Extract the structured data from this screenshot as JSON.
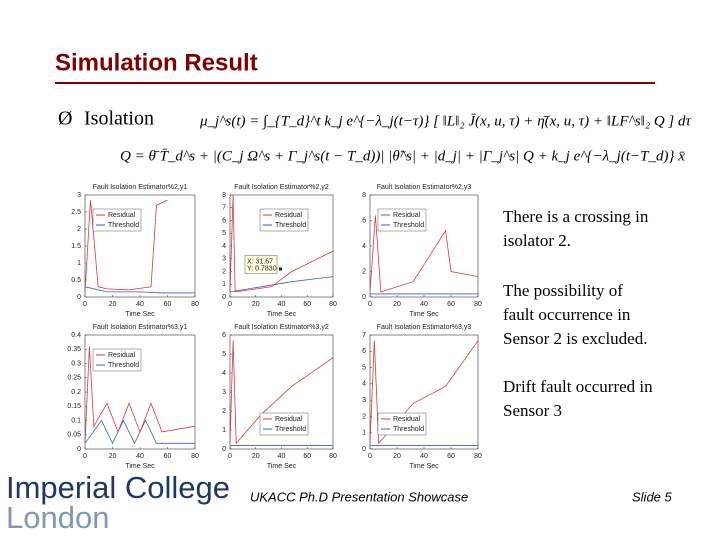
{
  "slide": {
    "title": "Simulation Result",
    "bullet_marker": "Ø",
    "bullet": "Isolation",
    "equations": [
      "μ_j^s(t) = ∫_{T_d}^t k_j e^{−λ_j(t−τ)} [ ‖L‖₂ J̄(x, u, τ) + η̄(x, u, τ) + ‖LF^s‖₂ Q ] dτ",
      "Q = θ̄ T̄_d^s + |(C_j Ω^s + Γ_j^s(t − T_d))| |θ̃^s| + |d_j| + |Γ_j^s| Q + k_j e^{−λ_j(t−T_d)} x̄"
    ],
    "notes": [
      [
        "There is a crossing in",
        "isolator 2."
      ],
      [
        "The possibility of",
        "fault occurrence in",
        "Sensor 2 is excluded."
      ],
      [
        "Drift fault occurred in",
        "Sensor 3"
      ]
    ],
    "plots": [
      {
        "title": "Fault Isolation Estimator%2,y1",
        "xlabel": "Time Sec",
        "xlim": [
          0,
          80
        ],
        "xticks": [
          0,
          20,
          40,
          60,
          80
        ],
        "ylim": [
          0,
          3
        ],
        "yticks": [
          0,
          0.5,
          1,
          1.5,
          2,
          2.5,
          3
        ],
        "legend": [
          "Residual",
          "Threshold"
        ]
      },
      {
        "title": "Fault Isolation Estimator%2,y2",
        "xlabel": "Time Sec",
        "xlim": [
          0,
          80
        ],
        "xticks": [
          0,
          20,
          40,
          60,
          80
        ],
        "ylim": [
          0,
          8
        ],
        "yticks": [
          0,
          1,
          2,
          3,
          4,
          5,
          6,
          7,
          8
        ],
        "legend": [
          "Residual",
          "Threshold"
        ],
        "annotation": [
          "X: 31.67",
          "Y: 0.7830"
        ]
      },
      {
        "title": "Fault Isolation Estimator%2,y3",
        "xlabel": "Time Sec",
        "xlim": [
          0,
          80
        ],
        "xticks": [
          0,
          20,
          40,
          60,
          80
        ],
        "ylim": [
          0,
          8
        ],
        "yticks": [
          0,
          2,
          4,
          6,
          8
        ],
        "legend": [
          "Residual",
          "Threshold"
        ]
      },
      {
        "title": "Fault Isolation Estimator%3,y1",
        "xlabel": "Time Sec",
        "xlim": [
          0,
          80
        ],
        "xticks": [
          0,
          20,
          40,
          60,
          80
        ],
        "ylim": [
          0,
          0.4
        ],
        "yticks": [
          0,
          0.05,
          0.1,
          0.15,
          0.2,
          0.25,
          0.3,
          0.35,
          0.4
        ],
        "legend": [
          "Residual",
          "Threshold"
        ]
      },
      {
        "title": "Fault Isolation Estimator%3,y2",
        "xlabel": "Time Sec",
        "xlim": [
          0,
          80
        ],
        "xticks": [
          0,
          20,
          40,
          60,
          80
        ],
        "ylim": [
          0,
          6
        ],
        "yticks": [
          0,
          1,
          2,
          3,
          4,
          5,
          6
        ],
        "legend": [
          "Residual",
          "Threshold"
        ]
      },
      {
        "title": "Fault Isolation Estimator%3,y3",
        "xlabel": "Time Sec",
        "xlim": [
          0,
          80
        ],
        "xticks": [
          0,
          20,
          40,
          60,
          80
        ],
        "ylim": [
          0,
          7
        ],
        "yticks": [
          0,
          1,
          2,
          3,
          4,
          5,
          6,
          7
        ],
        "legend": [
          "Residual",
          "Threshold"
        ]
      }
    ]
  },
  "footer": {
    "logo": [
      "Imperial College",
      "London"
    ],
    "event": "UKACC Ph.D Presentation Showcase",
    "slide_number": "Slide 5"
  }
}
